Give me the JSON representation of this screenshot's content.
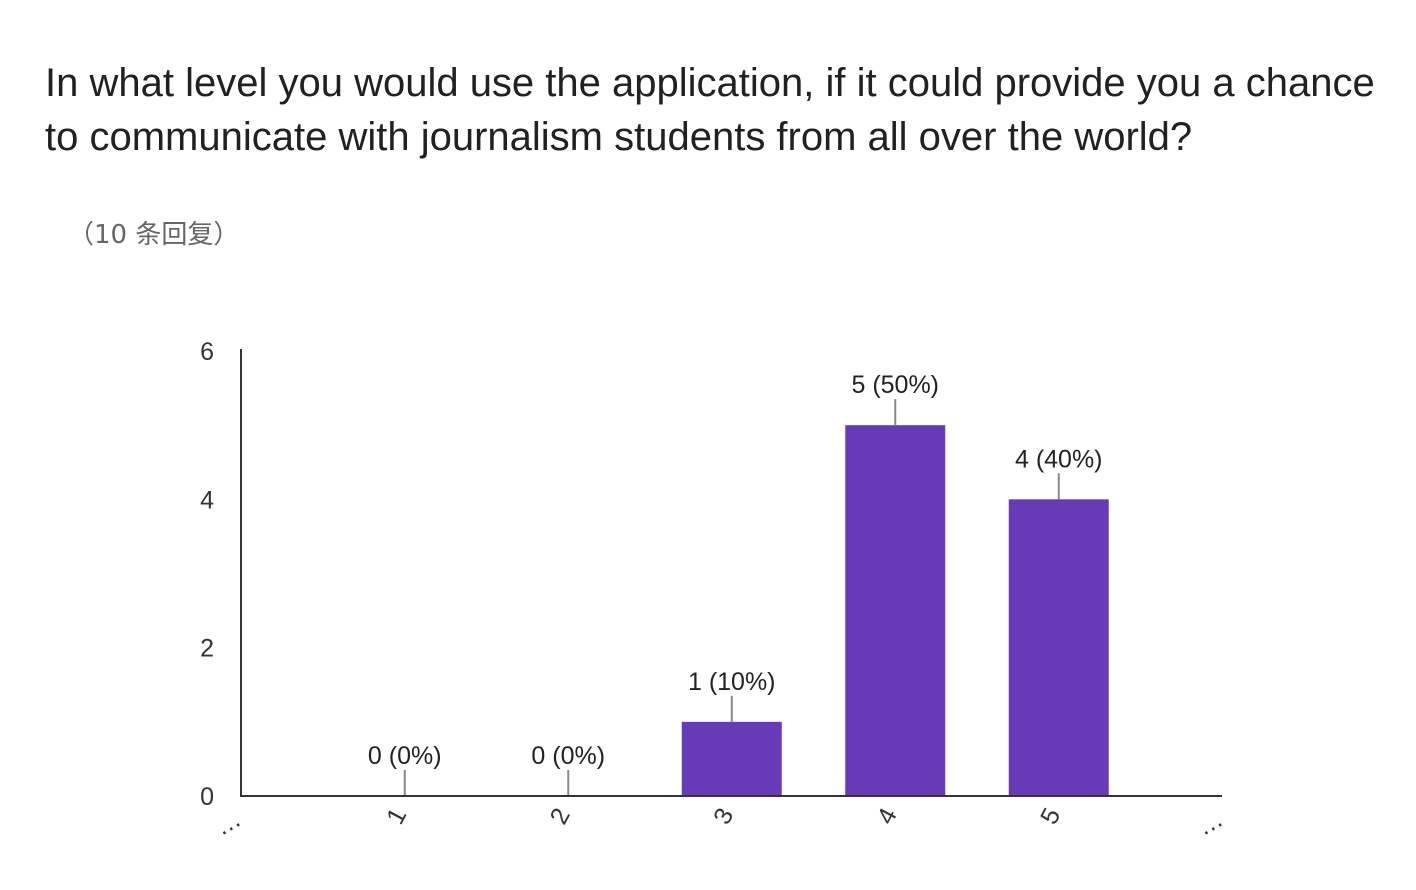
{
  "question": {
    "title": "In what level you would use the application, if it could provide you a chance to communicate with journalism students from all over the world?",
    "response_count": "（10 条回复）"
  },
  "chart_data": {
    "type": "bar",
    "categories": [
      "1",
      "2",
      "3",
      "4",
      "5"
    ],
    "values": [
      0,
      0,
      1,
      5,
      4
    ],
    "data_labels": [
      "0 (0%)",
      "0 (0%)",
      "1 (10%)",
      "5 (50%)",
      "4 (40%)"
    ],
    "ylim": [
      0,
      6
    ],
    "yticks": [
      0,
      2,
      4,
      6
    ],
    "x_axis_overflow_marker": "…",
    "bar_color": "#673ab7",
    "grid": false
  }
}
